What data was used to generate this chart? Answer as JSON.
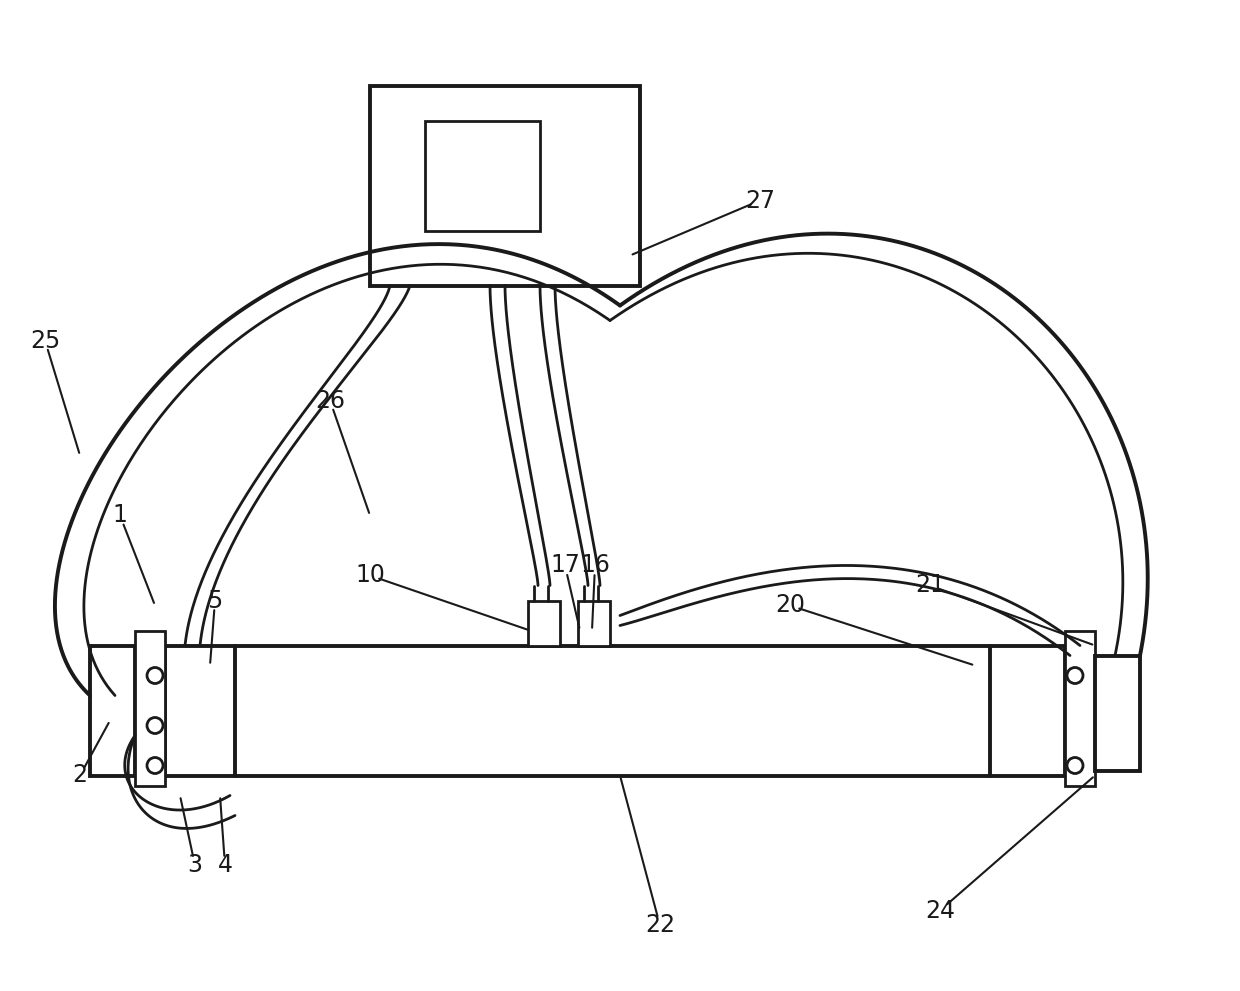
{
  "bg_color": "#ffffff",
  "lc": "#1a1a1a",
  "lw_main": 2.0,
  "lw_thick": 2.8,
  "lw_thin": 1.5,
  "label_fs": 17,
  "figsize": [
    12.4,
    9.91
  ],
  "dpi": 100
}
